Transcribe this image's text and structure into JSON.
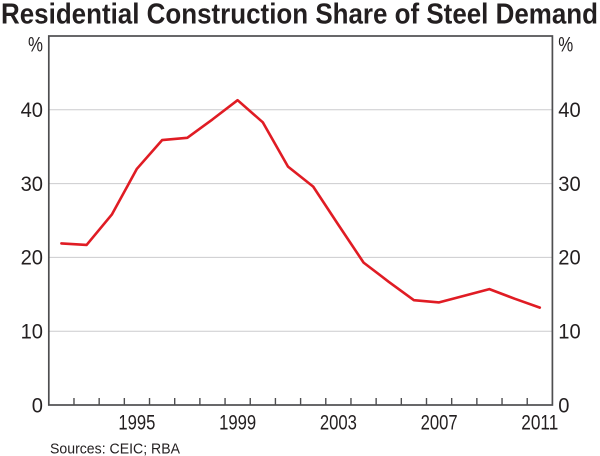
{
  "title": "Residential Construction Share of Steel Demand",
  "sources": "Sources: CEIC; RBA",
  "y_axis": {
    "unit_left": "%",
    "unit_right": "%",
    "tick_labels": [
      "0",
      "10",
      "20",
      "30",
      "40"
    ]
  },
  "x_axis": {
    "tick_labels": [
      "1995",
      "1999",
      "2003",
      "2007",
      "2011"
    ]
  },
  "colors": {
    "background": "#FFFFFF",
    "line": "#E01C24",
    "grid": "#CBCCCE",
    "frame": "#4E4E50",
    "text": "#231F20"
  },
  "chart_data": {
    "type": "line",
    "title": "Residential Construction Share of Steel Demand",
    "series_name": "Residential construction share of steel demand",
    "x": [
      1992,
      1993,
      1994,
      1995,
      1996,
      1997,
      1998,
      1999,
      2000,
      2001,
      2002,
      2003,
      2004,
      2005,
      2006,
      2007,
      2008,
      2009,
      2010,
      2011
    ],
    "values": [
      21.9,
      21.7,
      25.8,
      32.0,
      35.9,
      36.2,
      38.7,
      41.3,
      38.3,
      32.3,
      29.6,
      24.4,
      19.3,
      16.7,
      14.2,
      13.9,
      14.8,
      15.7,
      14.4,
      13.2
    ],
    "ylabel": "%",
    "ylim": [
      0,
      50
    ],
    "xlim": [
      1992,
      2012
    ],
    "y_ticks": [
      0,
      10,
      20,
      30,
      40
    ],
    "x_ticks": [
      1995,
      1999,
      2003,
      2007,
      2011
    ],
    "x_minor_tick_interval": 1,
    "grid": "horizontal",
    "legend": "none",
    "sources": "Sources: CEIC; RBA"
  }
}
